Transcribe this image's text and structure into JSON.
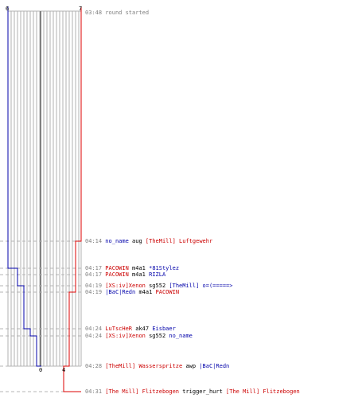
{
  "colors": {
    "blue": "#0000aa",
    "red": "#dd0000",
    "grid": "#b0b0b0",
    "dashed": "#b4b4b4",
    "center": "#808080"
  },
  "scores": {
    "blue_start": "6",
    "red_start": "7",
    "blue_end": "0",
    "red_end": "4"
  },
  "events": [
    {
      "time": "03:48",
      "parts": [
        {
          "text": "round started",
          "color": "gray"
        }
      ]
    },
    {
      "time": "04:14",
      "parts": [
        {
          "text": "no_name",
          "color": "blue"
        },
        {
          "text": " aug ",
          "color": "black"
        },
        {
          "text": "[TheMill] Luftgewehr",
          "color": "red"
        }
      ]
    },
    {
      "time": "04:17",
      "parts": [
        {
          "text": "PACOWIN",
          "color": "red"
        },
        {
          "text": " m4a1 ",
          "color": "black"
        },
        {
          "text": "*81Stylez",
          "color": "blue"
        }
      ]
    },
    {
      "time": "04:17",
      "parts": [
        {
          "text": "PACOWIN",
          "color": "red"
        },
        {
          "text": " m4a1 ",
          "color": "black"
        },
        {
          "text": "RIZLA",
          "color": "blue"
        }
      ]
    },
    {
      "time": "04:19",
      "parts": [
        {
          "text": "[XS:iv]Xenon",
          "color": "red"
        },
        {
          "text": " sg552 ",
          "color": "black"
        },
        {
          "text": "[TheMill] o=(=====>",
          "color": "blue"
        }
      ]
    },
    {
      "time": "04:19",
      "parts": [
        {
          "text": "|BaC|Redn",
          "color": "blue"
        },
        {
          "text": " m4a1 ",
          "color": "black"
        },
        {
          "text": "PACOWIN",
          "color": "red"
        }
      ]
    },
    {
      "time": "04:24",
      "parts": [
        {
          "text": "LuTscHeR",
          "color": "red"
        },
        {
          "text": " ak47 ",
          "color": "black"
        },
        {
          "text": "Eisbaer",
          "color": "blue"
        }
      ]
    },
    {
      "time": "04:24",
      "parts": [
        {
          "text": "[XS:iv]Xenon",
          "color": "red"
        },
        {
          "text": " sg552 ",
          "color": "black"
        },
        {
          "text": "no_name",
          "color": "blue"
        }
      ]
    },
    {
      "time": "04:28",
      "parts": [
        {
          "text": "[TheMill] Wasserspritze",
          "color": "red"
        },
        {
          "text": " awp ",
          "color": "black"
        },
        {
          "text": "|BaC|Redn",
          "color": "blue"
        }
      ]
    },
    {
      "time": "04:31",
      "parts": [
        {
          "text": "[The Mill] Flitzebogen",
          "color": "red"
        },
        {
          "text": " trigger_hurt ",
          "color": "black"
        },
        {
          "text": "[The Mill] Flitzebogen",
          "color": "red"
        }
      ]
    }
  ]
}
